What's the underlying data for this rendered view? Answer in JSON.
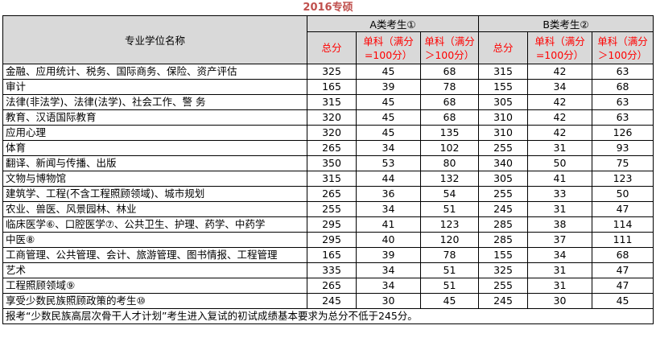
{
  "title": "2016专硕",
  "header": {
    "col_name": "专业学位名称",
    "group_a": "A类考生①",
    "group_b": "B类考生②",
    "total": "总分",
    "single_100_a": "单科（满分=100分）",
    "single_gt100_a": "单科（满分＞100分）",
    "single_100_b": "单科（满分=100分）",
    "single_gt100_b": "单科（满分＞100分）"
  },
  "rows": [
    {
      "name": "金融、应用统计、税务、国际商务、保险、资产评估",
      "a_total": "325",
      "a_100": "45",
      "a_gt100": "68",
      "b_total": "315",
      "b_100": "42",
      "b_gt100": "63"
    },
    {
      "name": "审计",
      "a_total": "165",
      "a_100": "39",
      "a_gt100": "78",
      "b_total": "155",
      "b_100": "34",
      "b_gt100": "68"
    },
    {
      "name": "法律(非法学)、法律(法学)、社会工作、警 务",
      "a_total": "315",
      "a_100": "45",
      "a_gt100": "68",
      "b_total": "305",
      "b_100": "42",
      "b_gt100": "63"
    },
    {
      "name": "教育、汉语国际教育",
      "a_total": "320",
      "a_100": "45",
      "a_gt100": "68",
      "b_total": "310",
      "b_100": "42",
      "b_gt100": "63"
    },
    {
      "name": "应用心理",
      "a_total": "320",
      "a_100": "45",
      "a_gt100": "135",
      "b_total": "310",
      "b_100": "42",
      "b_gt100": "126"
    },
    {
      "name": "体育",
      "a_total": "265",
      "a_100": "34",
      "a_gt100": "102",
      "b_total": "255",
      "b_100": "31",
      "b_gt100": "93"
    },
    {
      "name": "翻译、新闻与传播、出版",
      "a_total": "350",
      "a_100": "53",
      "a_gt100": "80",
      "b_total": "340",
      "b_100": "50",
      "b_gt100": "75"
    },
    {
      "name": "文物与博物馆",
      "a_total": "315",
      "a_100": "44",
      "a_gt100": "132",
      "b_total": "305",
      "b_100": "41",
      "b_gt100": "123"
    },
    {
      "name": "建筑学、工程(不含工程照顾领域)、城市规划",
      "a_total": "265",
      "a_100": "36",
      "a_gt100": "54",
      "b_total": "255",
      "b_100": "33",
      "b_gt100": "50"
    },
    {
      "name": "农业、兽医、风景园林、林业",
      "a_total": "255",
      "a_100": "34",
      "a_gt100": "51",
      "b_total": "245",
      "b_100": "31",
      "b_gt100": "47"
    },
    {
      "name": "临床医学⑥、口腔医学⑦、公共卫生、护理、药学、中药学",
      "a_total": "295",
      "a_100": "41",
      "a_gt100": "123",
      "b_total": "285",
      "b_100": "38",
      "b_gt100": "114"
    },
    {
      "name": "中医⑧",
      "a_total": "295",
      "a_100": "40",
      "a_gt100": "120",
      "b_total": "285",
      "b_100": "37",
      "b_gt100": "111"
    },
    {
      "name": "工商管理、公共管理、会计、旅游管理、图书情报、工程管理",
      "a_total": "165",
      "a_100": "39",
      "a_gt100": "78",
      "b_total": "155",
      "b_100": "34",
      "b_gt100": "68"
    },
    {
      "name": "艺术",
      "a_total": "335",
      "a_100": "34",
      "a_gt100": "51",
      "b_total": "325",
      "b_100": "31",
      "b_gt100": "47"
    },
    {
      "name": "工程照顾领域⑨",
      "a_total": "265",
      "a_100": "34",
      "a_gt100": "51",
      "b_total": "255",
      "b_100": "31",
      "b_gt100": "47"
    },
    {
      "name": "享受少数民族照顾政策的考生⑩",
      "a_total": "245",
      "a_100": "30",
      "a_gt100": "45",
      "b_total": "245",
      "b_100": "30",
      "b_gt100": "45"
    }
  ],
  "note": "报考“少数民族高层次骨干人才计划”考生进入复试的初试成绩基本要求为总分不低于245分。",
  "colors": {
    "title": "#c0504d",
    "header_red": "#ff0000",
    "header_bg": "#d9d9d9"
  }
}
